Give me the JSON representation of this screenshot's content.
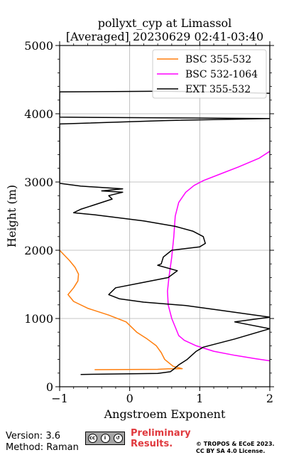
{
  "chart_data": {
    "type": "line",
    "title": "pollyxt_cyp at Limassol",
    "subtitle": "[Averaged] 20230629 02:41-03:40",
    "xlabel": "Angstroem Exponent",
    "ylabel": "Height (m)",
    "xlim": [
      -1,
      2
    ],
    "ylim": [
      0,
      5000
    ],
    "xticks": [
      "−1",
      "0",
      "1",
      "2"
    ],
    "yticks": [
      "0",
      "1000",
      "2000",
      "3000",
      "4000",
      "5000"
    ],
    "grid": true,
    "legend": "top-right",
    "series": [
      {
        "name": "BSC 355-532",
        "color": "#ff7f0e",
        "points": [
          [
            -0.5,
            250
          ],
          [
            0.4,
            255
          ],
          [
            0.55,
            262
          ],
          [
            0.75,
            265
          ],
          [
            0.62,
            300
          ],
          [
            0.5,
            400
          ],
          [
            0.45,
            500
          ],
          [
            0.38,
            600
          ],
          [
            0.25,
            700
          ],
          [
            0.1,
            800
          ],
          [
            -0.05,
            950
          ],
          [
            -0.3,
            1050
          ],
          [
            -0.6,
            1150
          ],
          [
            -0.8,
            1250
          ],
          [
            -0.88,
            1350
          ],
          [
            -0.8,
            1450
          ],
          [
            -0.74,
            1550
          ],
          [
            -0.73,
            1650
          ],
          [
            -0.78,
            1750
          ],
          [
            -0.86,
            1850
          ],
          [
            -1.0,
            2000
          ]
        ]
      },
      {
        "name": "BSC 532-1064",
        "color": "#ff00ff",
        "points": [
          [
            2.0,
            380
          ],
          [
            1.8,
            410
          ],
          [
            1.5,
            460
          ],
          [
            1.2,
            520
          ],
          [
            0.95,
            600
          ],
          [
            0.78,
            680
          ],
          [
            0.7,
            750
          ],
          [
            0.66,
            850
          ],
          [
            0.6,
            1000
          ],
          [
            0.55,
            1200
          ],
          [
            0.54,
            1400
          ],
          [
            0.56,
            1600
          ],
          [
            0.6,
            1900
          ],
          [
            0.63,
            2200
          ],
          [
            0.65,
            2500
          ],
          [
            0.7,
            2700
          ],
          [
            0.8,
            2850
          ],
          [
            0.92,
            2950
          ],
          [
            1.05,
            3020
          ],
          [
            1.3,
            3120
          ],
          [
            1.55,
            3220
          ],
          [
            1.85,
            3350
          ],
          [
            2.0,
            3450
          ]
        ]
      },
      {
        "name": "EXT 355-532",
        "color": "#000000",
        "points": [
          [
            -0.7,
            180
          ],
          [
            0.4,
            195
          ],
          [
            0.58,
            220
          ],
          [
            0.62,
            250
          ],
          [
            0.7,
            320
          ],
          [
            0.82,
            400
          ],
          [
            0.95,
            520
          ],
          [
            1.05,
            580
          ],
          [
            1.5,
            700
          ],
          [
            2.0,
            850
          ],
          [
            1.5,
            950
          ],
          [
            2.0,
            1020
          ],
          [
            1.3,
            1120
          ],
          [
            0.8,
            1190
          ],
          [
            0.2,
            1240
          ],
          [
            -0.15,
            1290
          ],
          [
            -0.3,
            1350
          ],
          [
            -0.2,
            1450
          ],
          [
            0.2,
            1530
          ],
          [
            0.55,
            1600
          ],
          [
            0.68,
            1700
          ],
          [
            0.4,
            1780
          ],
          [
            0.45,
            1800
          ],
          [
            0.48,
            1900
          ],
          [
            0.6,
            2000
          ],
          [
            1.0,
            2050
          ],
          [
            1.08,
            2100
          ],
          [
            1.05,
            2200
          ],
          [
            0.9,
            2280
          ],
          [
            0.65,
            2350
          ],
          [
            0.2,
            2430
          ],
          [
            -0.5,
            2520
          ],
          [
            -0.8,
            2550
          ],
          [
            -0.7,
            2600
          ],
          [
            -0.55,
            2650
          ],
          [
            -0.25,
            2750
          ],
          [
            -0.3,
            2800
          ],
          [
            -0.1,
            2850
          ],
          [
            -0.4,
            2870
          ],
          [
            -0.1,
            2900
          ],
          [
            -0.7,
            2940
          ],
          [
            -1.0,
            2980
          ],
          [
            -1.0,
            3850
          ],
          [
            0.5,
            3900
          ],
          [
            2.0,
            3930
          ],
          [
            -1.0,
            3950
          ],
          [
            -1.0,
            4320
          ],
          [
            0.5,
            4330
          ],
          [
            1.6,
            4310
          ],
          [
            2.0,
            4300
          ]
        ]
      }
    ]
  },
  "footer": {
    "version": "Version: 3.6",
    "method": "Method: Raman",
    "cc_label": "BY SA",
    "preliminary_line1": "Preliminary",
    "preliminary_line2": "Results.",
    "license_line1": "© TROPOS & ECoE 2023.",
    "license_line2": "CC BY SA 4.0 License."
  }
}
